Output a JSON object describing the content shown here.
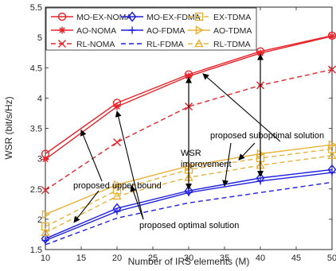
{
  "chart_data": {
    "type": "line",
    "xlabel": "Number of IRS elements (M)",
    "ylabel": "WSR (bit/s/Hz)",
    "xlim": [
      10,
      50
    ],
    "ylim": [
      1.5,
      5.5
    ],
    "xticks": [
      10,
      15,
      20,
      25,
      30,
      35,
      40,
      45,
      50
    ],
    "xtick_labels": [
      "10",
      "15",
      "20",
      "25",
      "30",
      "35",
      "40",
      "45",
      "50"
    ],
    "yticks": [
      1.5,
      2,
      2.5,
      3,
      3.5,
      4,
      4.5,
      5,
      5.5
    ],
    "ytick_labels": [
      "1.5",
      "2",
      "2.5",
      "3",
      "3.5",
      "4",
      "4.5",
      "5",
      "5.5"
    ],
    "grid": false,
    "legend_position": "top",
    "x": [
      10,
      20,
      30,
      40,
      50
    ],
    "series": [
      {
        "name": "MO-EX-NOMA",
        "color": "#e8232a",
        "dash": "solid",
        "marker": "circle",
        "values": [
          3.08,
          3.92,
          4.39,
          4.77,
          5.03
        ]
      },
      {
        "name": "MO-EX-FDMA",
        "color": "#1f1fe0",
        "dash": "solid",
        "marker": "diamond",
        "values": [
          1.68,
          2.18,
          2.47,
          2.68,
          2.82
        ]
      },
      {
        "name": "EX-TDMA",
        "color": "#e8b23a",
        "dash": "dashed",
        "marker": "square",
        "values": [
          1.88,
          2.48,
          2.82,
          3.01,
          3.16
        ]
      },
      {
        "name": "AO-NOMA",
        "color": "#e8232a",
        "dash": "solid",
        "marker": "star",
        "values": [
          2.99,
          3.86,
          4.36,
          4.74,
          5.02
        ]
      },
      {
        "name": "AO-FDMA",
        "color": "#1f1fe0",
        "dash": "solid",
        "marker": "plus",
        "values": [
          1.65,
          2.13,
          2.44,
          2.63,
          2.77
        ]
      },
      {
        "name": "AO-TDMA",
        "color": "#e8b23a",
        "dash": "solid",
        "marker": "triangle-right",
        "values": [
          2.08,
          2.57,
          2.88,
          3.08,
          3.23
        ]
      },
      {
        "name": "RL-NOMA",
        "color": "#e8232a",
        "dash": "dashed",
        "marker": "x",
        "values": [
          2.48,
          3.27,
          3.86,
          4.21,
          4.47
        ]
      },
      {
        "name": "RL-FDMA",
        "color": "#1f1fe0",
        "dash": "dashed",
        "marker": "none",
        "values": [
          1.58,
          2.02,
          2.27,
          2.44,
          2.61
        ]
      },
      {
        "name": "RL-TDMA",
        "color": "#e8b23a",
        "dash": "dashed",
        "marker": "triangle-up",
        "values": [
          1.78,
          2.38,
          2.69,
          2.89,
          3.05
        ]
      }
    ],
    "annotations": {
      "upper_bound": "proposed upper bound",
      "optimal": "proposed optimal solution",
      "suboptimal": "proposed suboptimal solution",
      "wsr_line1": "WSR",
      "wsr_line2": "improvement"
    }
  }
}
